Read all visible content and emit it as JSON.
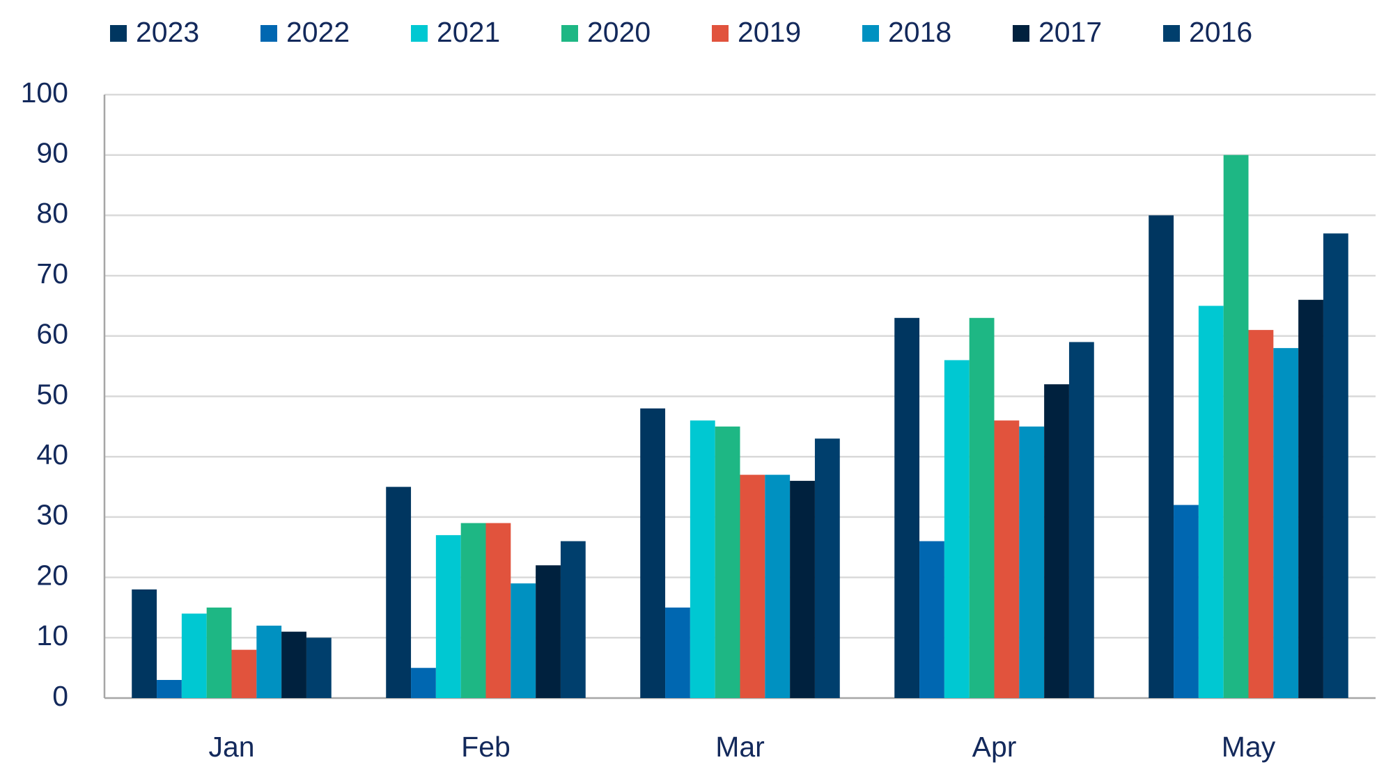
{
  "chart_data": {
    "type": "bar",
    "categories": [
      "Jan",
      "Feb",
      "Mar",
      "Apr",
      "May"
    ],
    "series": [
      {
        "name": "2023",
        "color": "#003660",
        "values": [
          18,
          35,
          48,
          63,
          80
        ]
      },
      {
        "name": "2022",
        "color": "#0067b1",
        "values": [
          3,
          5,
          15,
          26,
          32
        ]
      },
      {
        "name": "2021",
        "color": "#00c8d2",
        "values": [
          14,
          27,
          46,
          56,
          65
        ]
      },
      {
        "name": "2020",
        "color": "#1eb784",
        "values": [
          15,
          29,
          45,
          63,
          90
        ]
      },
      {
        "name": "2019",
        "color": "#e1533d",
        "values": [
          8,
          29,
          37,
          46,
          61
        ]
      },
      {
        "name": "2018",
        "color": "#0091c1",
        "values": [
          12,
          19,
          37,
          45,
          58
        ]
      },
      {
        "name": "2017",
        "color": "#00213e",
        "values": [
          11,
          22,
          36,
          52,
          66
        ]
      },
      {
        "name": "2016",
        "color": "#003f6d",
        "values": [
          10,
          26,
          43,
          59,
          77
        ]
      }
    ],
    "ylim": [
      0,
      100
    ],
    "yticks": [
      0,
      10,
      20,
      30,
      40,
      50,
      60,
      70,
      80,
      90,
      100
    ],
    "grid": true,
    "legend": "top"
  }
}
